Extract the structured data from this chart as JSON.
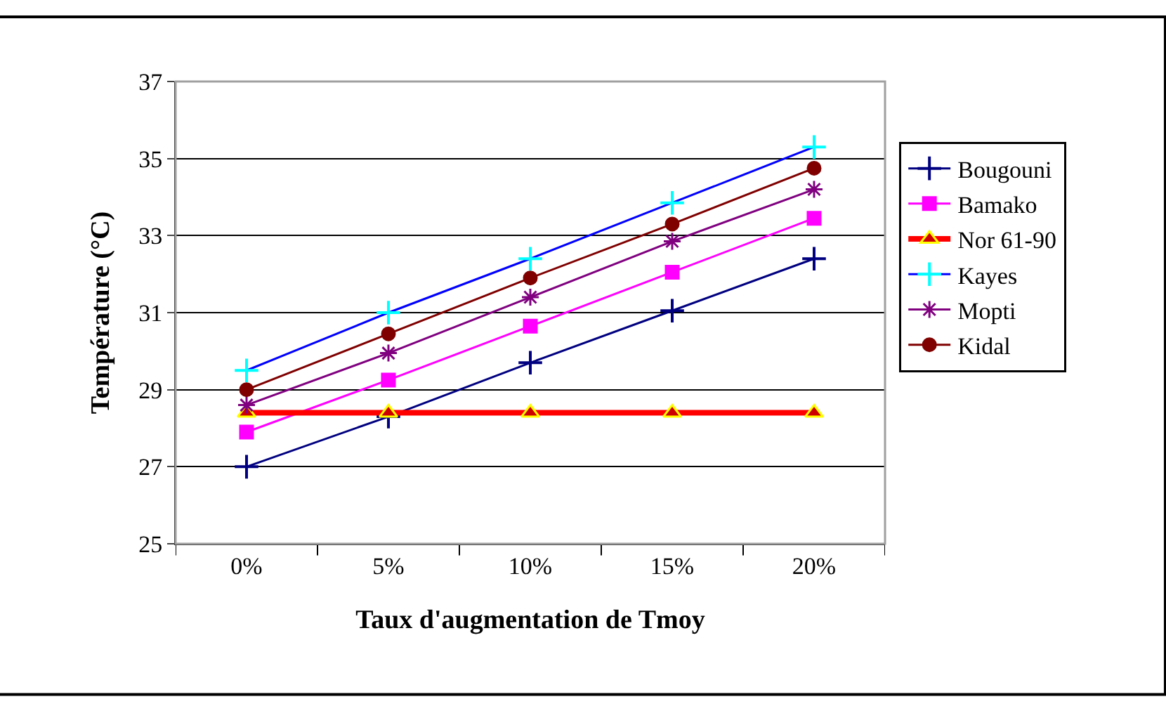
{
  "chart_data": {
    "type": "line",
    "xlabel": "Taux d'augmentation de Tmoy",
    "ylabel": "Température (°C)",
    "categories": [
      "0%",
      "5%",
      "10%",
      "15%",
      "20%"
    ],
    "ylim": [
      25,
      37
    ],
    "yticks": [
      25,
      27,
      29,
      31,
      33,
      35,
      37
    ],
    "grid": "y",
    "legend": "right",
    "series": [
      {
        "name": "Bougouni",
        "color": "#000080",
        "marker": "cross",
        "values": [
          27.0,
          28.3,
          29.7,
          31.05,
          32.4
        ]
      },
      {
        "name": "Bamako",
        "color": "#ff00ff",
        "marker": "square",
        "values": [
          27.9,
          29.25,
          30.65,
          32.05,
          33.45
        ]
      },
      {
        "name": "Nor 61-90",
        "color": "#ff0000",
        "marker": "triangle",
        "values": [
          28.4,
          28.4,
          28.4,
          28.4,
          28.4
        ]
      },
      {
        "name": "Kayes",
        "color": "#0000ff",
        "marker": "cross",
        "values": [
          29.5,
          31.0,
          32.4,
          33.85,
          35.3
        ]
      },
      {
        "name": "Mopti",
        "color": "#800080",
        "marker": "cross",
        "values": [
          28.6,
          29.95,
          31.4,
          32.85,
          34.2
        ]
      },
      {
        "name": "Kidal",
        "color": "#800000",
        "marker": "circle",
        "values": [
          29.0,
          30.45,
          31.9,
          33.3,
          34.75
        ]
      }
    ]
  }
}
